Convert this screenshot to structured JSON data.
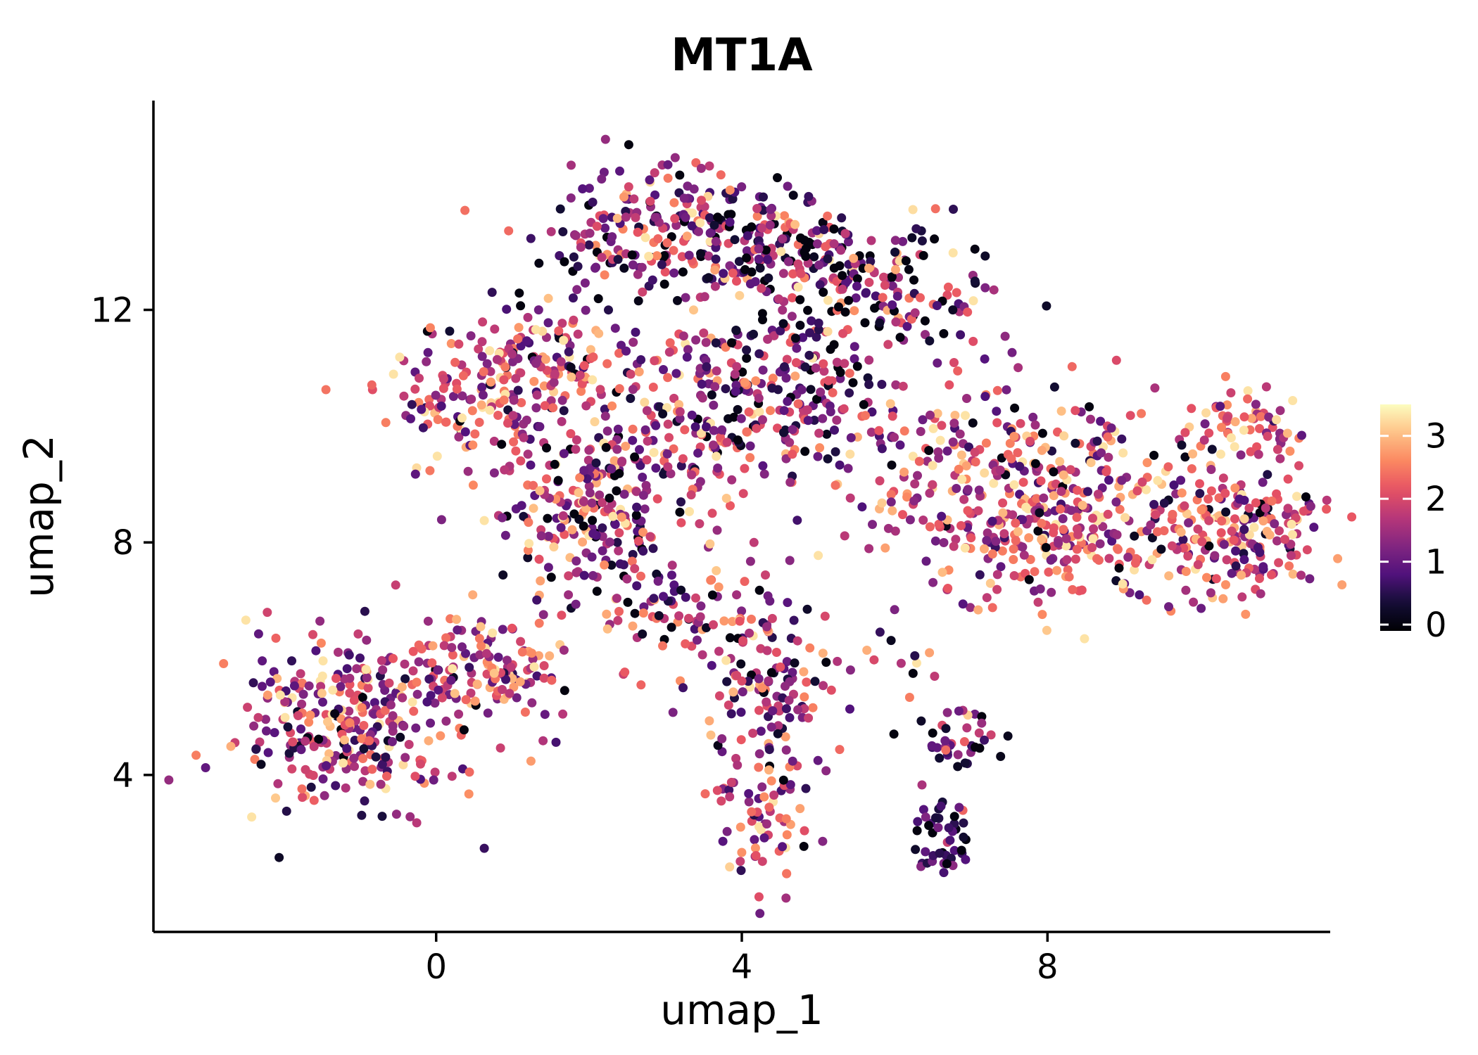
{
  "title": "MT1A",
  "chart_data": {
    "type": "scatter",
    "title": "MT1A",
    "xlabel": "umap_1",
    "ylabel": "umap_2",
    "xlim": [
      -3.7,
      11.7
    ],
    "ylim": [
      1.3,
      15.6
    ],
    "x_ticks": [
      0,
      4,
      8
    ],
    "y_ticks": [
      4,
      8,
      12
    ],
    "grid": false,
    "point_radius": 6.5,
    "background": "#ffffff",
    "axis_color": "#000000",
    "legend": {
      "position": "right",
      "ticks": [
        0,
        1,
        2,
        3
      ],
      "bar_range": [
        -0.1,
        3.5
      ],
      "value_range": [
        0,
        3.3
      ]
    },
    "colormap": {
      "name": "magma",
      "stops": [
        "#000004",
        "#140e36",
        "#51127c",
        "#822681",
        "#b73779",
        "#e75263",
        "#fb8861",
        "#fec287",
        "#fcfdbf"
      ]
    },
    "seed": 42,
    "cluster_fields": [
      "center_x",
      "center_y",
      "spread_x",
      "spread_y",
      "n_points",
      "value_mean",
      "value_sd"
    ],
    "clusters": [
      [
        3.0,
        13.4,
        0.8,
        0.55,
        220,
        1.3,
        1.1
      ],
      [
        4.6,
        12.9,
        0.8,
        0.5,
        150,
        1.1,
        1.1
      ],
      [
        0.6,
        10.6,
        0.65,
        0.6,
        160,
        1.8,
        1.0
      ],
      [
        1.6,
        11.3,
        0.5,
        0.5,
        90,
        1.6,
        1.0
      ],
      [
        2.0,
        8.6,
        0.65,
        0.75,
        230,
        1.5,
        1.1
      ],
      [
        3.3,
        10.2,
        0.7,
        0.8,
        160,
        1.7,
        1.0
      ],
      [
        4.7,
        10.7,
        0.6,
        0.65,
        170,
        1.2,
        1.0
      ],
      [
        6.0,
        12.3,
        0.7,
        0.5,
        110,
        1.0,
        1.1
      ],
      [
        6.8,
        9.5,
        0.9,
        0.8,
        150,
        1.6,
        1.0
      ],
      [
        7.9,
        8.3,
        0.8,
        0.75,
        260,
        2.0,
        0.9
      ],
      [
        3.2,
        6.8,
        0.55,
        0.55,
        90,
        1.6,
        1.0
      ],
      [
        4.4,
        5.6,
        0.45,
        0.7,
        110,
        1.5,
        1.0
      ],
      [
        10.4,
        8.1,
        0.7,
        0.6,
        240,
        1.9,
        0.9
      ],
      [
        10.7,
        10.1,
        0.45,
        0.3,
        55,
        1.9,
        0.9
      ],
      [
        -1.1,
        4.9,
        0.8,
        0.7,
        300,
        1.7,
        1.0
      ],
      [
        0.2,
        5.9,
        0.5,
        0.45,
        80,
        1.8,
        1.0
      ],
      [
        1.1,
        5.8,
        0.35,
        0.4,
        50,
        2.0,
        0.9
      ],
      [
        4.3,
        3.4,
        0.35,
        0.6,
        80,
        1.6,
        1.0
      ],
      [
        6.6,
        2.9,
        0.22,
        0.35,
        45,
        0.6,
        0.7
      ],
      [
        6.8,
        4.7,
        0.28,
        0.22,
        40,
        1.3,
        0.9
      ],
      [
        8.8,
        9.3,
        0.6,
        0.7,
        40,
        1.6,
        1.0
      ],
      [
        6.0,
        6.0,
        0.3,
        0.3,
        12,
        1.5,
        1.0
      ]
    ]
  }
}
